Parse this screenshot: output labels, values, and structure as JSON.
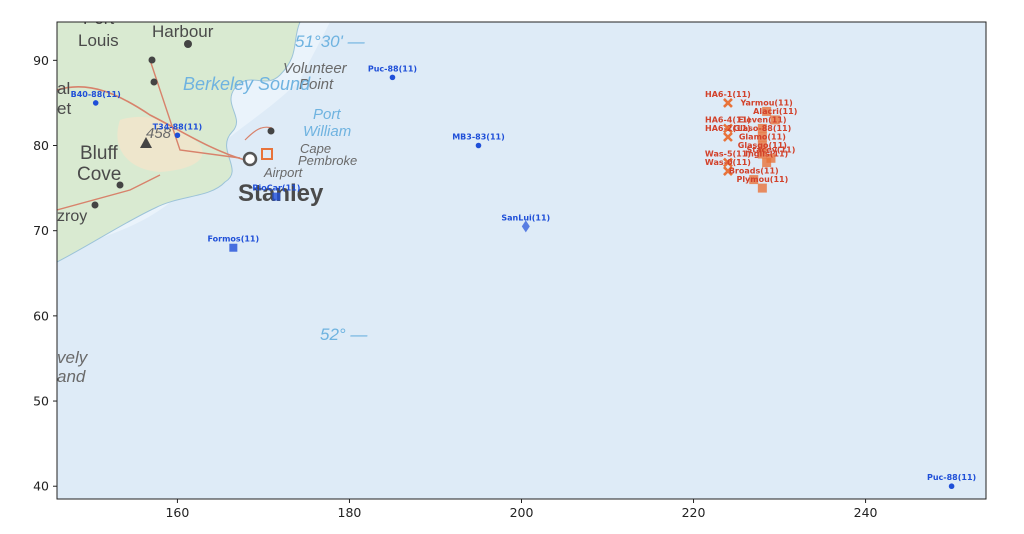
{
  "colors": {
    "frame": "#222222",
    "sea": "#deebf7",
    "bay": "#eaf3fb",
    "land": "#d9ead1",
    "land_beige": "#eee6cc",
    "road": "#d8826b",
    "blue_series": "#1f4fd8",
    "orange_series": "#e8733a",
    "red_label": "#d2412a"
  },
  "chart_data": {
    "type": "scatter",
    "title": "",
    "xlabel": "",
    "ylabel": "",
    "xlim": [
      146,
      254
    ],
    "ylim": [
      38.5,
      94.5
    ],
    "xticks": [
      160,
      180,
      200,
      220,
      240
    ],
    "yticks": [
      40,
      50,
      60,
      70,
      80,
      90
    ],
    "grid": false,
    "background": "map",
    "points": [
      {
        "label": "Puc-88(11)",
        "x": 185,
        "y": 88,
        "marker": "circle",
        "color": "blue"
      },
      {
        "label": "B40-88(11)",
        "x": 150.5,
        "y": 85,
        "marker": "circle",
        "color": "blue"
      },
      {
        "label": "T34-88(11)",
        "x": 160,
        "y": 81.2,
        "marker": "circle",
        "color": "blue"
      },
      {
        "label": "MB3-83(11)",
        "x": 195,
        "y": 80,
        "marker": "circle",
        "color": "blue"
      },
      {
        "label": "RioCar(11)",
        "x": 171.5,
        "y": 74,
        "marker": "square",
        "color": "blue"
      },
      {
        "label": "SanLui(11)",
        "x": 200.5,
        "y": 70.5,
        "marker": "diamond",
        "color": "blue"
      },
      {
        "label": "Formos(11)",
        "x": 166.5,
        "y": 68,
        "marker": "square",
        "color": "blue"
      },
      {
        "label": "Puc-88(11)",
        "x": 250,
        "y": 40,
        "marker": "circle",
        "color": "blue"
      },
      {
        "label": "HA6-1(11)",
        "x": 224,
        "y": 85,
        "marker": "x",
        "color": "orange"
      },
      {
        "label": "Yarmou(11)",
        "x": 228.5,
        "y": 84,
        "marker": "square",
        "color": "orange"
      },
      {
        "label": "Alacri(11)",
        "x": 229.5,
        "y": 83,
        "marker": "square",
        "color": "orange"
      },
      {
        "label": "HA6-4(11)",
        "x": 224,
        "y": 82,
        "marker": "x",
        "color": "orange"
      },
      {
        "label": "Eleven(11)",
        "x": 228,
        "y": 82,
        "marker": "square",
        "color": "orange"
      },
      {
        "label": "HA6-2(11)",
        "x": 224,
        "y": 81,
        "marker": "x",
        "color": "orange"
      },
      {
        "label": "Glaso-88(11)",
        "x": 228,
        "y": 81,
        "marker": "square",
        "color": "orange"
      },
      {
        "label": "Glamo(11)",
        "x": 228,
        "y": 80,
        "marker": "square",
        "color": "orange"
      },
      {
        "label": "Glasgo(11)",
        "x": 228,
        "y": 79,
        "marker": "square",
        "color": "orange"
      },
      {
        "label": "Was-5(11)",
        "x": 224,
        "y": 78,
        "marker": "x",
        "color": "orange"
      },
      {
        "label": "Inglis(11)",
        "x": 228.5,
        "y": 78,
        "marker": "square",
        "color": "orange"
      },
      {
        "label": "Stacey(11)",
        "x": 229,
        "y": 78.5,
        "marker": "square",
        "color": "orange"
      },
      {
        "label": "Was-0(11)",
        "x": 224,
        "y": 77,
        "marker": "x",
        "color": "orange"
      },
      {
        "label": "Broads(11)",
        "x": 227,
        "y": 76,
        "marker": "square",
        "color": "orange"
      },
      {
        "label": "Plymou(11)",
        "x": 228,
        "y": 75,
        "marker": "square",
        "color": "orange"
      }
    ]
  },
  "map_labels": {
    "port_louis": "Port",
    "louis": "Louis",
    "harbour": "Harbour",
    "lat_top": "51°30' —",
    "volunteer": "Volunteer",
    "point": "Point",
    "berkeley_sound": "Berkeley Sound",
    "port_william_1": "Port",
    "port_william_2": "William",
    "elev": "458",
    "bluff": "Bluff",
    "cove": "Cove",
    "cape": "Cape",
    "pembroke": "Pembroke",
    "airport": "Airport",
    "stanley": "Stanley",
    "fitzroy": "zroy",
    "lat_bottom": "52° —",
    "lively_1": "vely",
    "lively_2": "and",
    "edge_al": "al",
    "edge_et": "et"
  }
}
